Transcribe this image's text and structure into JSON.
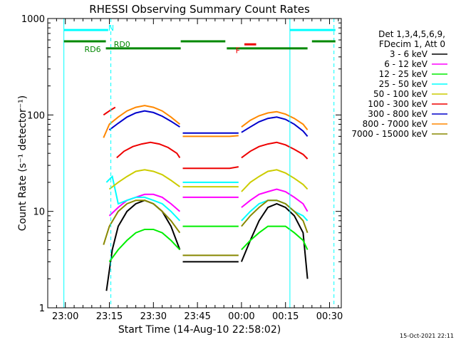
{
  "chart_data": {
    "type": "line",
    "title": "RHESSI Observing Summary Count Rates",
    "xlabel": "Start Time (14-Aug-10 22:58:02)",
    "ylabel": "Count Rate (s⁻¹ detector⁻¹)",
    "yscale": "log",
    "ylim": [
      1,
      1000
    ],
    "y_ticks": [
      "1",
      "10",
      "100",
      "1000"
    ],
    "xlim_minutes": [
      -6,
      94
    ],
    "x_ticks": [
      {
        "label": "23:00",
        "m": 0
      },
      {
        "label": "23:15",
        "m": 15
      },
      {
        "label": "23:30",
        "m": 30
      },
      {
        "label": "23:45",
        "m": 45
      },
      {
        "label": "00:00",
        "m": 60
      },
      {
        "label": "00:15",
        "m": 75
      },
      {
        "label": "00:30",
        "m": 90
      }
    ],
    "legend_header": [
      "Det 1,3,4,5,6,9,",
      "FDecim 1, Att 0"
    ],
    "series": [
      {
        "name": "3 - 6 keV",
        "color": "#000000",
        "segments": [
          {
            "x": [
              14,
              16,
              18,
              21,
              24,
              27,
              30,
              33,
              36,
              39
            ],
            "y": [
              1.5,
              4,
              7,
              10,
              12,
              13,
              12,
              10,
              7,
              4
            ]
          },
          {
            "x": [
              40,
              44,
              48,
              52,
              56,
              59
            ],
            "y": [
              3,
              3,
              3,
              3,
              3,
              3
            ]
          },
          {
            "x": [
              60,
              63,
              66,
              69,
              72,
              75,
              78,
              81,
              82.5
            ],
            "y": [
              3,
              5,
              8,
              11,
              12,
              11,
              9,
              6,
              2
            ]
          }
        ]
      },
      {
        "name": "6 - 12 keV",
        "color": "#ff00ff",
        "segments": [
          {
            "x": [
              15,
              18,
              21,
              24,
              27,
              30,
              33,
              36,
              39
            ],
            "y": [
              9,
              11,
              13,
              14,
              15,
              15,
              14,
              12,
              10
            ]
          },
          {
            "x": [
              40,
              44,
              48,
              52,
              56,
              59
            ],
            "y": [
              14,
              14,
              14,
              14,
              14,
              14
            ]
          },
          {
            "x": [
              60,
              63,
              66,
              69,
              72,
              75,
              78,
              81,
              82.5
            ],
            "y": [
              11,
              13,
              15,
              16,
              17,
              16,
              14,
              12,
              10
            ]
          }
        ]
      },
      {
        "name": "12 - 25 keV",
        "color": "#00ee00",
        "segments": [
          {
            "x": [
              15,
              18,
              21,
              24,
              27,
              30,
              33,
              36,
              39
            ],
            "y": [
              3,
              4,
              5,
              6,
              6.5,
              6.5,
              6,
              5,
              4
            ]
          },
          {
            "x": [
              40,
              44,
              48,
              52,
              56,
              59
            ],
            "y": [
              7,
              7,
              7,
              7,
              7,
              7
            ]
          },
          {
            "x": [
              60,
              63,
              66,
              69,
              72,
              75,
              78,
              81,
              82.5
            ],
            "y": [
              4,
              5,
              6,
              7,
              7,
              7,
              6,
              5,
              4
            ]
          }
        ]
      },
      {
        "name": "25 - 50 keV",
        "color": "#00ffff",
        "segments": [
          {
            "x": [
              14,
              16,
              18,
              21,
              24,
              27,
              30,
              33,
              36,
              39
            ],
            "y": [
              20,
              23,
              12,
              13,
              14,
              14,
              13,
              12,
              10,
              8
            ]
          },
          {
            "x": [
              40,
              44,
              48,
              52,
              56,
              59
            ],
            "y": [
              20,
              20,
              20,
              20,
              20,
              20
            ]
          },
          {
            "x": [
              60,
              63,
              66,
              69,
              72,
              75,
              78,
              81,
              82.5
            ],
            "y": [
              8,
              10,
              12,
              13,
              13,
              12,
              10,
              9,
              8
            ]
          }
        ]
      },
      {
        "name": "50 - 100 keV",
        "color": "#cccc00",
        "segments": [
          {
            "x": [
              15,
              18,
              21,
              24,
              27,
              30,
              33,
              36,
              39
            ],
            "y": [
              17,
              20,
              23,
              26,
              27,
              26,
              24,
              21,
              18
            ]
          },
          {
            "x": [
              40,
              44,
              48,
              52,
              56,
              59
            ],
            "y": [
              18,
              18,
              18,
              18,
              18,
              18
            ]
          },
          {
            "x": [
              60,
              63,
              66,
              69,
              72,
              75,
              78,
              81,
              82.5
            ],
            "y": [
              16,
              20,
              23,
              26,
              27,
              25,
              22,
              19,
              17
            ]
          }
        ]
      },
      {
        "name": "100 - 300 keV",
        "color": "#ee0000",
        "segments": [
          {
            "x": [
              13,
              14,
              15,
              16,
              17
            ],
            "y": [
              100,
              105,
              110,
              115,
              120
            ]
          },
          {
            "x": [
              17.5,
              20,
              23,
              26,
              29,
              32,
              35,
              38,
              39
            ],
            "y": [
              36,
              42,
              47,
              50,
              52,
              50,
              46,
              40,
              36
            ]
          },
          {
            "x": [
              40,
              44,
              48,
              52,
              56,
              59
            ],
            "y": [
              28,
              28,
              28,
              28,
              28,
              29
            ]
          },
          {
            "x": [
              60,
              63,
              66,
              69,
              72,
              75,
              78,
              81,
              82.5
            ],
            "y": [
              36,
              42,
              47,
              50,
              52,
              49,
              44,
              39,
              35
            ]
          }
        ]
      },
      {
        "name": "300 - 800 keV",
        "color": "#0000cc",
        "segments": [
          {
            "x": [
              15,
              18,
              21,
              24,
              27,
              30,
              33,
              36,
              39
            ],
            "y": [
              70,
              82,
              95,
              105,
              110,
              106,
              97,
              86,
              75
            ]
          },
          {
            "x": [
              40,
              44,
              48,
              52,
              56,
              59
            ],
            "y": [
              65,
              65,
              65,
              65,
              65,
              65
            ]
          },
          {
            "x": [
              60,
              63,
              66,
              69,
              72,
              75,
              78,
              81,
              82.5
            ],
            "y": [
              66,
              75,
              85,
              92,
              95,
              90,
              80,
              68,
              60
            ]
          }
        ]
      },
      {
        "name": "800 - 7000 keV",
        "color": "#ff8800",
        "segments": [
          {
            "x": [
              13,
              15,
              18,
              21,
              24,
              27,
              30,
              33,
              36,
              39
            ],
            "y": [
              58,
              80,
              95,
              110,
              120,
              125,
              120,
              110,
              95,
              80
            ]
          },
          {
            "x": [
              40,
              44,
              48,
              52,
              56,
              59
            ],
            "y": [
              60,
              60,
              60,
              60,
              60,
              61
            ]
          },
          {
            "x": [
              60,
              63,
              66,
              69,
              72,
              75,
              78,
              81,
              82.5
            ],
            "y": [
              75,
              88,
              98,
              105,
              108,
              102,
              92,
              80,
              70
            ]
          }
        ]
      },
      {
        "name": "7000 - 15000 keV",
        "color": "#888800",
        "segments": [
          {
            "x": [
              13,
              15,
              18,
              21,
              24,
              27,
              30,
              33,
              36,
              39
            ],
            "y": [
              4.5,
              7,
              10,
              12,
              13,
              13,
              12,
              10,
              8,
              6
            ]
          },
          {
            "x": [
              40,
              44,
              48,
              52,
              56,
              59
            ],
            "y": [
              3.5,
              3.5,
              3.5,
              3.5,
              3.5,
              3.5
            ]
          },
          {
            "x": [
              60,
              63,
              66,
              69,
              72,
              75,
              78,
              81,
              82.5
            ],
            "y": [
              7,
              9,
              11,
              13,
              13,
              12,
              10,
              8,
              6
            ]
          }
        ]
      }
    ],
    "flags": {
      "level_labels": [
        {
          "text": "N",
          "color": "#00ffff",
          "m": 14.6,
          "level": 800
        },
        {
          "text": "F",
          "color": "#ee0000",
          "m": 58,
          "level": 470
        },
        {
          "text": "RD0",
          "color": "#008800",
          "m": 16.5,
          "level": 540
        },
        {
          "text": "RD6",
          "color": "#008800",
          "m": 6.5,
          "level": 480
        }
      ],
      "spans": [
        {
          "color": "#00ffff",
          "level": 760,
          "ranges": [
            [
              -0.5,
              14.6
            ],
            [
              76.5,
              92
            ]
          ]
        },
        {
          "color": "#ee0000",
          "level": 540,
          "ranges": [
            [
              61,
              65
            ]
          ]
        },
        {
          "color": "#008800",
          "level": 580,
          "ranges": [
            [
              -0.5,
              13.8
            ],
            [
              39.3,
              54.5
            ],
            [
              84,
              92
            ]
          ]
        },
        {
          "color": "#008800",
          "level": 490,
          "ranges": [
            [
              13.8,
              39.3
            ],
            [
              55,
              82.5
            ]
          ]
        }
      ],
      "vlines": [
        {
          "m": -0.5,
          "color": "#00ffff",
          "dashed": false
        },
        {
          "m": 15.5,
          "color": "#00ffff",
          "dashed": true
        },
        {
          "m": 76.5,
          "color": "#00ffff",
          "dashed": false
        },
        {
          "m": 91.5,
          "color": "#00ffff",
          "dashed": true
        }
      ]
    },
    "footer_date": "15-Oct-2021 22:11"
  }
}
